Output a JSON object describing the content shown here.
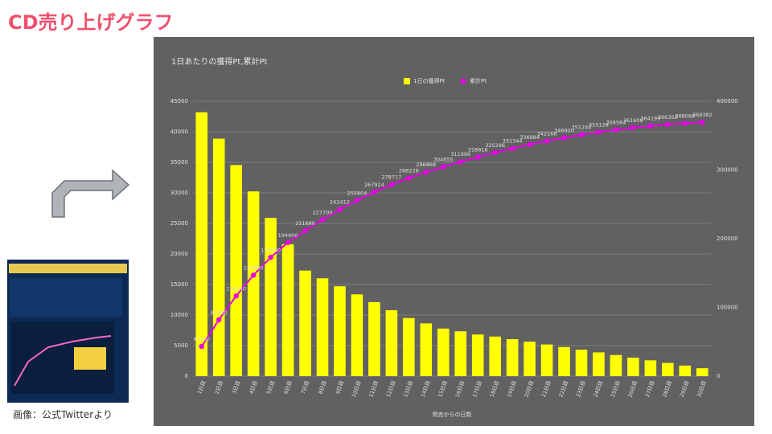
{
  "slide_title": "CD売り上げグラフ",
  "caption": "画像：公式Twitterより",
  "chart_data": {
    "type": "combo",
    "title": "1日あたりの獲得Pt,累計Pt",
    "x_label": "発売からの日数",
    "categories": [
      "1日目",
      "2日目",
      "3日目",
      "4日目",
      "5日目",
      "6日目",
      "7日目",
      "8日目",
      "9日目",
      "10日目",
      "11日目",
      "12日目",
      "13日目",
      "14日目",
      "15日目",
      "16日目",
      "17日目",
      "18日目",
      "19日目",
      "20日目",
      "21日目",
      "22日目",
      "23日目",
      "24日目",
      "25日目",
      "26日目",
      "27日目",
      "28日目",
      "29日目",
      "30日目"
    ],
    "series": [
      {
        "name": "1日の獲得Pt",
        "color": "#ffff00",
        "type": "bar",
        "values": [
          43200,
          38880,
          34560,
          30240,
          25920,
          21600,
          17280,
          16020,
          14712,
          13392,
          12120,
          10793,
          9511,
          8640,
          7787,
          7344,
          6817,
          6480,
          6048,
          5640,
          5184,
          4752,
          4320,
          3888,
          3456,
          3024,
          2591,
          2160,
          1729,
          1294
        ]
      },
      {
        "name": "累計Pt",
        "color": "#e600e6",
        "type": "line",
        "axis": "y2",
        "data_labels": true,
        "values": [
          43200,
          82080,
          116640,
          146880,
          172800,
          194400,
          211680,
          227700,
          242412,
          255804,
          267924,
          278717,
          288228,
          296868,
          304655,
          311999,
          318816,
          325296,
          331344,
          336984,
          342168,
          346920,
          351240,
          355128,
          358584,
          361608,
          364199,
          366359,
          368088,
          369382
        ]
      }
    ],
    "ylim": [
      0,
      45000
    ],
    "yticks": [
      0,
      5000,
      10000,
      15000,
      20000,
      25000,
      30000,
      35000,
      40000,
      45000
    ],
    "y2lim": [
      0,
      400000
    ],
    "y2ticks": [
      0,
      100000,
      200000,
      300000,
      400000
    ],
    "grid": true,
    "legend": "top"
  }
}
